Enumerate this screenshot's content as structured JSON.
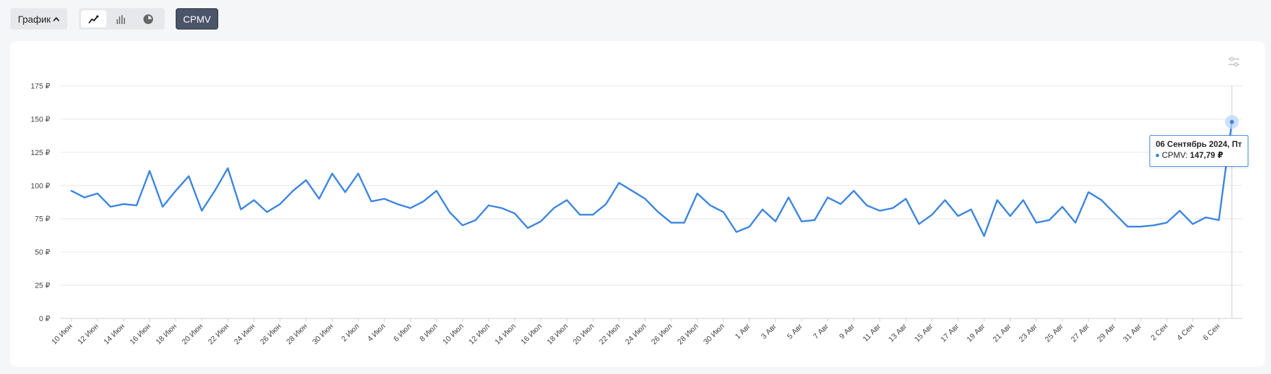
{
  "toolbar": {
    "view_label": "График",
    "metric_label": "CPMV",
    "chart_type_buttons": [
      {
        "name": "line-chart-icon",
        "active": true
      },
      {
        "name": "bar-chart-icon",
        "active": false
      },
      {
        "name": "pie-chart-icon",
        "active": false
      }
    ]
  },
  "colors": {
    "line": "#3d86e0",
    "accent": "#4b5468",
    "grid": "#e6e6e6",
    "marker_halo": "#b9d4f5"
  },
  "tooltip": {
    "date": "06 Сентябрь 2024, Пт",
    "series_label": "CPMV:",
    "value": "147,79 ₽"
  },
  "chart_data": {
    "type": "line",
    "y_ticks": [
      "0 ₽",
      "25 ₽",
      "50 ₽",
      "75 ₽",
      "100 ₽",
      "125 ₽",
      "150 ₽",
      "175 ₽"
    ],
    "ylim": [
      0,
      175
    ],
    "x_tick_labels": [
      "10 Июн",
      "12 Июн",
      "14 Июн",
      "16 Июн",
      "18 Июн",
      "20 Июн",
      "22 Июн",
      "24 Июн",
      "26 Июн",
      "28 Июн",
      "30 Июн",
      "2 Июл",
      "4 Июл",
      "6 Июл",
      "8 Июл",
      "10 Июл",
      "12 Июл",
      "14 Июл",
      "16 Июл",
      "18 Июл",
      "20 Июл",
      "22 Июл",
      "24 Июл",
      "26 Июл",
      "28 Июл",
      "30 Июл",
      "1 Авг",
      "3 Авг",
      "5 Авг",
      "7 Авг",
      "9 Авг",
      "11 Авг",
      "13 Авг",
      "15 Авг",
      "17 Авг",
      "19 Авг",
      "21 Авг",
      "23 Авг",
      "25 Авг",
      "27 Авг",
      "29 Авг",
      "31 Авг",
      "2 Сен",
      "4 Сен",
      "6 Сен"
    ],
    "series": [
      {
        "values": [
          96,
          91,
          94,
          84,
          86,
          85,
          111,
          84,
          96,
          107,
          81,
          96,
          113,
          82,
          89,
          80,
          86,
          96,
          104,
          90,
          109,
          95,
          109,
          88,
          90,
          86,
          83,
          88,
          96,
          80,
          70,
          74,
          85,
          83,
          79,
          68,
          73,
          83,
          89,
          78,
          78,
          86,
          102,
          96,
          90,
          80,
          72,
          72,
          94,
          85,
          80,
          65,
          69,
          82,
          73,
          91,
          73,
          74,
          91,
          86,
          96,
          85,
          81,
          83,
          90,
          71,
          78,
          89,
          77,
          82,
          62,
          89,
          77,
          89,
          72,
          74,
          84,
          72,
          95,
          89,
          79,
          69,
          69,
          70,
          72,
          81,
          71,
          76,
          74,
          147.79
        ]
      }
    ],
    "grid": true,
    "legend": "none"
  }
}
